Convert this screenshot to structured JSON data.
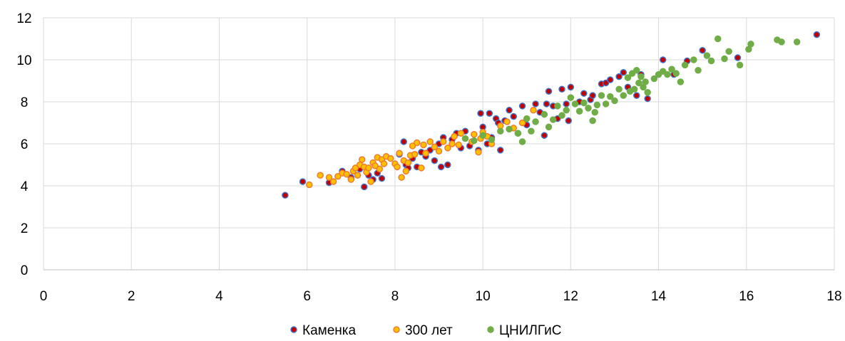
{
  "chart_data": {
    "type": "scatter",
    "title": "",
    "xlabel": "",
    "ylabel": "",
    "xlim": [
      0,
      18
    ],
    "ylim": [
      0,
      12
    ],
    "x_ticks": [
      0,
      2,
      4,
      6,
      8,
      10,
      12,
      14,
      16,
      18
    ],
    "y_ticks": [
      0,
      2,
      4,
      6,
      8,
      10,
      12
    ],
    "grid": true,
    "legend_position": "bottom",
    "series": [
      {
        "name": "Каменка",
        "fill": "#c00000",
        "stroke": "#4472c4",
        "points": [
          [
            5.5,
            3.55
          ],
          [
            5.9,
            4.2
          ],
          [
            6.5,
            4.15
          ],
          [
            6.8,
            4.7
          ],
          [
            7.0,
            4.4
          ],
          [
            7.2,
            4.8
          ],
          [
            7.3,
            3.95
          ],
          [
            7.4,
            4.5
          ],
          [
            7.5,
            4.3
          ],
          [
            7.6,
            4.6
          ],
          [
            7.7,
            4.35
          ],
          [
            8.1,
            5.5
          ],
          [
            8.2,
            6.1
          ],
          [
            8.25,
            5.0
          ],
          [
            8.3,
            4.85
          ],
          [
            8.4,
            5.3
          ],
          [
            8.5,
            4.9
          ],
          [
            8.6,
            5.6
          ],
          [
            8.7,
            5.4
          ],
          [
            8.8,
            5.7
          ],
          [
            8.9,
            5.2
          ],
          [
            9.0,
            6.0
          ],
          [
            9.05,
            4.9
          ],
          [
            9.1,
            6.3
          ],
          [
            9.2,
            5.0
          ],
          [
            9.3,
            6.2
          ],
          [
            9.4,
            6.5
          ],
          [
            9.5,
            5.8
          ],
          [
            9.6,
            6.6
          ],
          [
            9.7,
            5.9
          ],
          [
            9.9,
            5.7
          ],
          [
            9.95,
            7.45
          ],
          [
            10.0,
            6.8
          ],
          [
            10.1,
            6.0
          ],
          [
            10.15,
            7.45
          ],
          [
            10.2,
            6.3
          ],
          [
            10.3,
            7.2
          ],
          [
            10.35,
            7.0
          ],
          [
            10.4,
            5.7
          ],
          [
            10.5,
            7.1
          ],
          [
            10.6,
            7.6
          ],
          [
            10.7,
            7.3
          ],
          [
            10.8,
            6.5
          ],
          [
            10.9,
            7.8
          ],
          [
            11.0,
            6.9
          ],
          [
            11.2,
            7.9
          ],
          [
            11.3,
            7.5
          ],
          [
            11.4,
            6.4
          ],
          [
            11.45,
            7.9
          ],
          [
            11.5,
            8.5
          ],
          [
            11.6,
            7.8
          ],
          [
            11.7,
            7.2
          ],
          [
            11.8,
            8.6
          ],
          [
            11.9,
            7.9
          ],
          [
            11.95,
            7.1
          ],
          [
            12.0,
            8.7
          ],
          [
            12.2,
            8.0
          ],
          [
            12.3,
            8.4
          ],
          [
            12.45,
            8.1
          ],
          [
            12.5,
            8.3
          ],
          [
            12.7,
            8.85
          ],
          [
            12.8,
            8.9
          ],
          [
            12.9,
            9.05
          ],
          [
            13.1,
            9.2
          ],
          [
            13.2,
            9.4
          ],
          [
            13.3,
            8.7
          ],
          [
            13.5,
            8.3
          ],
          [
            13.6,
            9.3
          ],
          [
            13.75,
            8.15
          ],
          [
            14.1,
            10.0
          ],
          [
            14.35,
            9.3
          ],
          [
            14.65,
            9.95
          ],
          [
            15.0,
            10.45
          ],
          [
            15.8,
            10.1
          ],
          [
            17.6,
            11.2
          ]
        ]
      },
      {
        "name": "300 лет",
        "fill": "#ffc000",
        "stroke": "#ed7d31",
        "points": [
          [
            6.05,
            4.05
          ],
          [
            6.3,
            4.5
          ],
          [
            6.5,
            4.4
          ],
          [
            6.6,
            4.2
          ],
          [
            6.7,
            4.45
          ],
          [
            6.8,
            4.6
          ],
          [
            6.9,
            4.55
          ],
          [
            7.0,
            4.3
          ],
          [
            7.05,
            4.7
          ],
          [
            7.1,
            4.85
          ],
          [
            7.15,
            4.5
          ],
          [
            7.2,
            5.0
          ],
          [
            7.25,
            5.25
          ],
          [
            7.3,
            4.9
          ],
          [
            7.35,
            4.65
          ],
          [
            7.4,
            4.85
          ],
          [
            7.45,
            4.2
          ],
          [
            7.5,
            5.1
          ],
          [
            7.55,
            4.95
          ],
          [
            7.6,
            5.35
          ],
          [
            7.65,
            4.8
          ],
          [
            7.7,
            5.25
          ],
          [
            7.75,
            5.05
          ],
          [
            7.8,
            5.4
          ],
          [
            7.9,
            5.3
          ],
          [
            8.0,
            5.05
          ],
          [
            8.05,
            4.9
          ],
          [
            8.1,
            5.55
          ],
          [
            8.15,
            4.4
          ],
          [
            8.2,
            5.2
          ],
          [
            8.25,
            4.7
          ],
          [
            8.3,
            5.1
          ],
          [
            8.35,
            5.45
          ],
          [
            8.4,
            5.9
          ],
          [
            8.45,
            5.5
          ],
          [
            8.5,
            6.05
          ],
          [
            8.6,
            4.85
          ],
          [
            8.65,
            5.95
          ],
          [
            8.7,
            5.55
          ],
          [
            8.8,
            6.1
          ],
          [
            8.9,
            5.85
          ],
          [
            9.0,
            5.65
          ],
          [
            9.1,
            6.1
          ],
          [
            9.2,
            5.8
          ],
          [
            9.3,
            6.0
          ],
          [
            9.35,
            6.35
          ],
          [
            9.45,
            5.95
          ],
          [
            9.5,
            6.5
          ],
          [
            9.75,
            6.1
          ],
          [
            9.8,
            6.45
          ],
          [
            9.9,
            5.6
          ],
          [
            9.95,
            6.25
          ],
          [
            10.0,
            6.55
          ],
          [
            10.1,
            6.35
          ],
          [
            10.2,
            6.0
          ],
          [
            10.4,
            6.85
          ],
          [
            10.55,
            7.05
          ],
          [
            10.7,
            6.75
          ],
          [
            10.9,
            7.0
          ],
          [
            11.15,
            7.6
          ]
        ]
      },
      {
        "name": "ЦНИЛГиС",
        "fill": "#70ad47",
        "stroke": "#70ad47",
        "points": [
          [
            9.6,
            6.25
          ],
          [
            9.8,
            6.15
          ],
          [
            10.0,
            6.4
          ],
          [
            10.2,
            6.2
          ],
          [
            10.4,
            6.6
          ],
          [
            10.6,
            6.7
          ],
          [
            10.8,
            6.5
          ],
          [
            10.9,
            6.1
          ],
          [
            11.0,
            7.2
          ],
          [
            11.1,
            6.6
          ],
          [
            11.2,
            7.05
          ],
          [
            11.4,
            7.4
          ],
          [
            11.5,
            6.8
          ],
          [
            11.6,
            7.15
          ],
          [
            11.7,
            7.8
          ],
          [
            11.8,
            7.35
          ],
          [
            11.9,
            7.6
          ],
          [
            12.0,
            8.2
          ],
          [
            12.1,
            7.9
          ],
          [
            12.2,
            7.55
          ],
          [
            12.3,
            7.95
          ],
          [
            12.4,
            7.7
          ],
          [
            12.5,
            7.1
          ],
          [
            12.55,
            7.5
          ],
          [
            12.6,
            7.85
          ],
          [
            12.7,
            8.3
          ],
          [
            12.8,
            7.9
          ],
          [
            12.9,
            8.25
          ],
          [
            13.0,
            8.05
          ],
          [
            13.1,
            8.6
          ],
          [
            13.2,
            8.3
          ],
          [
            13.3,
            9.15
          ],
          [
            13.35,
            8.5
          ],
          [
            13.4,
            9.35
          ],
          [
            13.45,
            8.6
          ],
          [
            13.5,
            9.5
          ],
          [
            13.55,
            8.9
          ],
          [
            13.6,
            9.2
          ],
          [
            13.65,
            8.7
          ],
          [
            13.7,
            8.95
          ],
          [
            13.75,
            8.45
          ],
          [
            13.9,
            9.1
          ],
          [
            14.0,
            9.3
          ],
          [
            14.1,
            9.45
          ],
          [
            14.2,
            9.3
          ],
          [
            14.3,
            9.55
          ],
          [
            14.4,
            9.35
          ],
          [
            14.5,
            8.95
          ],
          [
            14.6,
            9.75
          ],
          [
            14.8,
            10.0
          ],
          [
            14.9,
            9.5
          ],
          [
            15.1,
            10.2
          ],
          [
            15.2,
            9.95
          ],
          [
            15.35,
            11.0
          ],
          [
            15.5,
            10.05
          ],
          [
            15.6,
            10.4
          ],
          [
            15.85,
            9.75
          ],
          [
            16.05,
            10.5
          ],
          [
            16.1,
            10.75
          ],
          [
            16.7,
            10.95
          ],
          [
            16.8,
            10.85
          ],
          [
            17.15,
            10.85
          ]
        ]
      }
    ]
  }
}
